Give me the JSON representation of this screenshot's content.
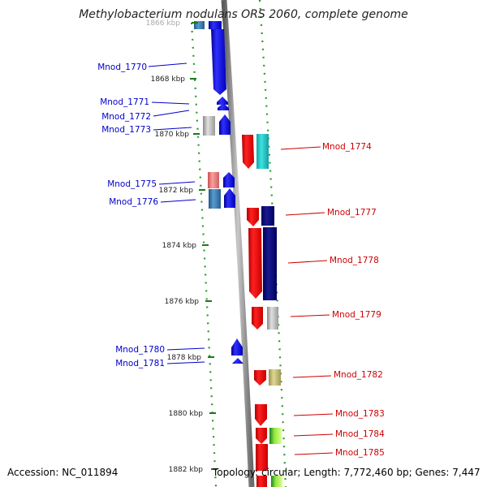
{
  "title": "Methylobacterium nodulans ORS 2060, complete genome",
  "footer": {
    "accession": "Accession: NC_011894",
    "topology": "Topology: circular; Length: 7,772,460 bp; Genes: 7,447"
  },
  "colors": {
    "left_label": "#0000cc",
    "right_label": "#cc0000",
    "tick": "#1a7a1a",
    "dots": "#2a9a2a",
    "backbone": "#8c8c8c"
  },
  "scale": {
    "unit": "kbp",
    "ticks": [
      {
        "kbp": 1866,
        "label": "1866 kbp"
      },
      {
        "kbp": 1868,
        "label": "1868 kbp"
      },
      {
        "kbp": 1870,
        "label": "1870 kbp"
      },
      {
        "kbp": 1872,
        "label": "1872 kbp"
      },
      {
        "kbp": 1874,
        "label": "1874 kbp"
      },
      {
        "kbp": 1876,
        "label": "1876 kbp"
      },
      {
        "kbp": 1878,
        "label": "1878 kbp"
      },
      {
        "kbp": 1880,
        "label": "1880 kbp"
      },
      {
        "kbp": 1882,
        "label": "1882 kbp"
      }
    ]
  },
  "genes_left": [
    {
      "label": "Mnod_1770",
      "color": "#1010e8"
    },
    {
      "label": "Mnod_1771",
      "color": "#1010e8"
    },
    {
      "label": "Mnod_1772",
      "color": "#1010e8"
    },
    {
      "label": "Mnod_1773",
      "color": "#b8b8b8"
    },
    {
      "label": "Mnod_1775",
      "color": "#e87878"
    },
    {
      "label": "Mnod_1776",
      "color": "#3a78b0"
    },
    {
      "label": "Mnod_1780",
      "color": "#1010e8"
    },
    {
      "label": "Mnod_1781",
      "color": "#1010e8"
    }
  ],
  "genes_right": [
    {
      "label": "Mnod_1774",
      "color": "#e81010"
    },
    {
      "label": "Mnod_1777",
      "color": "#e81010"
    },
    {
      "label": "Mnod_1778",
      "color": "#e81010"
    },
    {
      "label": "Mnod_1779",
      "color": "#e81010"
    },
    {
      "label": "Mnod_1782",
      "color": "#e81010"
    },
    {
      "label": "Mnod_1783",
      "color": "#e81010"
    },
    {
      "label": "Mnod_1784",
      "color": "#e81010"
    },
    {
      "label": "Mnod_1785",
      "color": "#e81010"
    }
  ]
}
